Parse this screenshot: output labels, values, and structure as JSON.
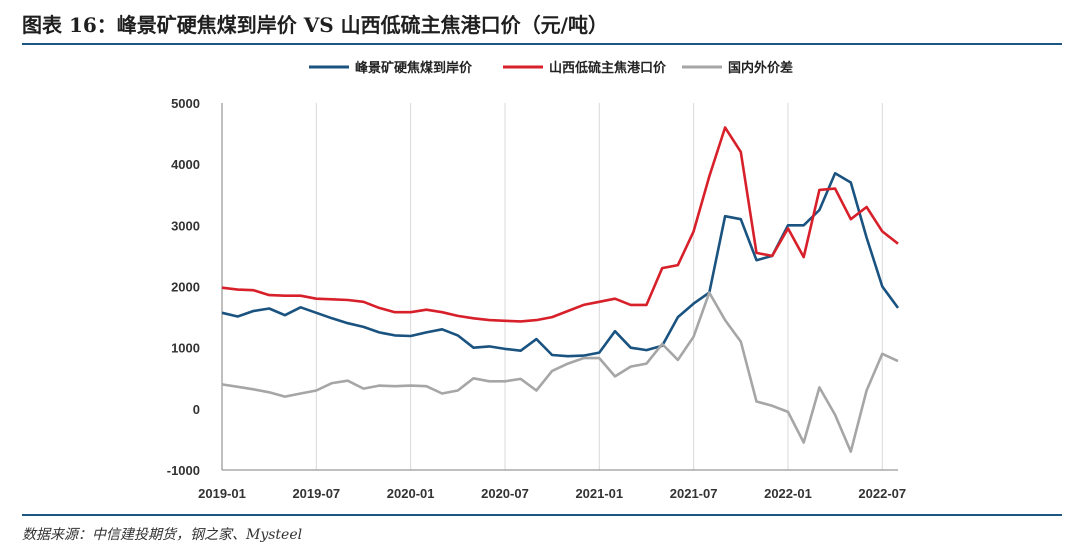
{
  "title": "图表 16：峰景矿硬焦煤到岸价 VS 山西低硫主焦港口价（元/吨）",
  "source": "数据来源：中信建投期货，钢之家、Mysteel",
  "chart_data": {
    "type": "line",
    "title": "",
    "xlabel": "",
    "ylabel": "",
    "ylim": [
      -1000,
      5000
    ],
    "yticks": [
      -1000,
      0,
      1000,
      2000,
      3000,
      4000,
      5000
    ],
    "xlim": [
      "2019-01",
      "2022-08"
    ],
    "xticks": [
      "2019-01",
      "2019-07",
      "2020-01",
      "2020-07",
      "2021-01",
      "2021-07",
      "2022-01",
      "2022-07"
    ],
    "grid": "vertical",
    "legend": "top",
    "series": [
      {
        "name": "峰景矿硬焦煤到岸价",
        "color": "#1a5380",
        "points": [
          [
            "2019-01",
            1570
          ],
          [
            "2019-02",
            1510
          ],
          [
            "2019-03",
            1600
          ],
          [
            "2019-04",
            1640
          ],
          [
            "2019-05",
            1530
          ],
          [
            "2019-06",
            1660
          ],
          [
            "2019-07",
            1570
          ],
          [
            "2019-08",
            1480
          ],
          [
            "2019-09",
            1400
          ],
          [
            "2019-10",
            1340
          ],
          [
            "2019-11",
            1250
          ],
          [
            "2019-12",
            1200
          ],
          [
            "2020-01",
            1190
          ],
          [
            "2020-02",
            1250
          ],
          [
            "2020-03",
            1300
          ],
          [
            "2020-04",
            1200
          ],
          [
            "2020-05",
            1000
          ],
          [
            "2020-06",
            1020
          ],
          [
            "2020-07",
            980
          ],
          [
            "2020-08",
            950
          ],
          [
            "2020-09",
            1140
          ],
          [
            "2020-10",
            880
          ],
          [
            "2020-11",
            860
          ],
          [
            "2020-12",
            870
          ],
          [
            "2021-01",
            920
          ],
          [
            "2021-02",
            1270
          ],
          [
            "2021-03",
            1000
          ],
          [
            "2021-04",
            960
          ],
          [
            "2021-05",
            1030
          ],
          [
            "2021-06",
            1500
          ],
          [
            "2021-07",
            1720
          ],
          [
            "2021-08",
            1900
          ],
          [
            "2021-09",
            3150
          ],
          [
            "2021-10",
            3100
          ],
          [
            "2021-11",
            2430
          ],
          [
            "2021-12",
            2500
          ],
          [
            "2022-01",
            3000
          ],
          [
            "2022-02",
            3000
          ],
          [
            "2022-03",
            3250
          ],
          [
            "2022-04",
            3850
          ],
          [
            "2022-05",
            3700
          ],
          [
            "2022-06",
            2800
          ],
          [
            "2022-07",
            2000
          ],
          [
            "2022-08",
            1650
          ]
        ]
      },
      {
        "name": "山西低硫主焦港口价",
        "color": "#d7202a",
        "points": [
          [
            "2019-01",
            1980
          ],
          [
            "2019-02",
            1950
          ],
          [
            "2019-03",
            1940
          ],
          [
            "2019-04",
            1860
          ],
          [
            "2019-05",
            1850
          ],
          [
            "2019-06",
            1850
          ],
          [
            "2019-07",
            1800
          ],
          [
            "2019-08",
            1790
          ],
          [
            "2019-09",
            1780
          ],
          [
            "2019-10",
            1750
          ],
          [
            "2019-11",
            1650
          ],
          [
            "2019-12",
            1580
          ],
          [
            "2020-01",
            1580
          ],
          [
            "2020-02",
            1620
          ],
          [
            "2020-03",
            1580
          ],
          [
            "2020-04",
            1520
          ],
          [
            "2020-05",
            1480
          ],
          [
            "2020-06",
            1450
          ],
          [
            "2020-07",
            1440
          ],
          [
            "2020-08",
            1430
          ],
          [
            "2020-09",
            1450
          ],
          [
            "2020-10",
            1500
          ],
          [
            "2020-11",
            1600
          ],
          [
            "2020-12",
            1700
          ],
          [
            "2021-01",
            1750
          ],
          [
            "2021-02",
            1800
          ],
          [
            "2021-03",
            1700
          ],
          [
            "2021-04",
            1700
          ],
          [
            "2021-05",
            2300
          ],
          [
            "2021-06",
            2350
          ],
          [
            "2021-07",
            2900
          ],
          [
            "2021-08",
            3800
          ],
          [
            "2021-09",
            4600
          ],
          [
            "2021-10",
            4200
          ],
          [
            "2021-11",
            2550
          ],
          [
            "2021-12",
            2500
          ],
          [
            "2022-01",
            2950
          ],
          [
            "2022-02",
            2480
          ],
          [
            "2022-03",
            3580
          ],
          [
            "2022-04",
            3600
          ],
          [
            "2022-05",
            3100
          ],
          [
            "2022-06",
            3300
          ],
          [
            "2022-07",
            2900
          ],
          [
            "2022-08",
            2700
          ]
        ]
      },
      {
        "name": "国内外价差",
        "color": "#a6a6a6",
        "points": [
          [
            "2019-01",
            400
          ],
          [
            "2019-02",
            360
          ],
          [
            "2019-03",
            320
          ],
          [
            "2019-04",
            270
          ],
          [
            "2019-05",
            200
          ],
          [
            "2019-06",
            250
          ],
          [
            "2019-07",
            300
          ],
          [
            "2019-08",
            420
          ],
          [
            "2019-09",
            460
          ],
          [
            "2019-10",
            330
          ],
          [
            "2019-11",
            380
          ],
          [
            "2019-12",
            370
          ],
          [
            "2020-01",
            380
          ],
          [
            "2020-02",
            370
          ],
          [
            "2020-03",
            250
          ],
          [
            "2020-04",
            300
          ],
          [
            "2020-05",
            500
          ],
          [
            "2020-06",
            450
          ],
          [
            "2020-07",
            450
          ],
          [
            "2020-08",
            490
          ],
          [
            "2020-09",
            300
          ],
          [
            "2020-10",
            620
          ],
          [
            "2020-11",
            740
          ],
          [
            "2020-12",
            830
          ],
          [
            "2021-01",
            830
          ],
          [
            "2021-02",
            530
          ],
          [
            "2021-03",
            690
          ],
          [
            "2021-04",
            740
          ],
          [
            "2021-05",
            1060
          ],
          [
            "2021-06",
            800
          ],
          [
            "2021-07",
            1180
          ],
          [
            "2021-08",
            1900
          ],
          [
            "2021-09",
            1450
          ],
          [
            "2021-10",
            1100
          ],
          [
            "2021-11",
            120
          ],
          [
            "2021-12",
            50
          ],
          [
            "2022-01",
            -50
          ],
          [
            "2022-02",
            -550
          ],
          [
            "2022-03",
            350
          ],
          [
            "2022-04",
            -100
          ],
          [
            "2022-05",
            -700
          ],
          [
            "2022-06",
            300
          ],
          [
            "2022-07",
            900
          ],
          [
            "2022-08",
            780
          ]
        ]
      }
    ]
  }
}
